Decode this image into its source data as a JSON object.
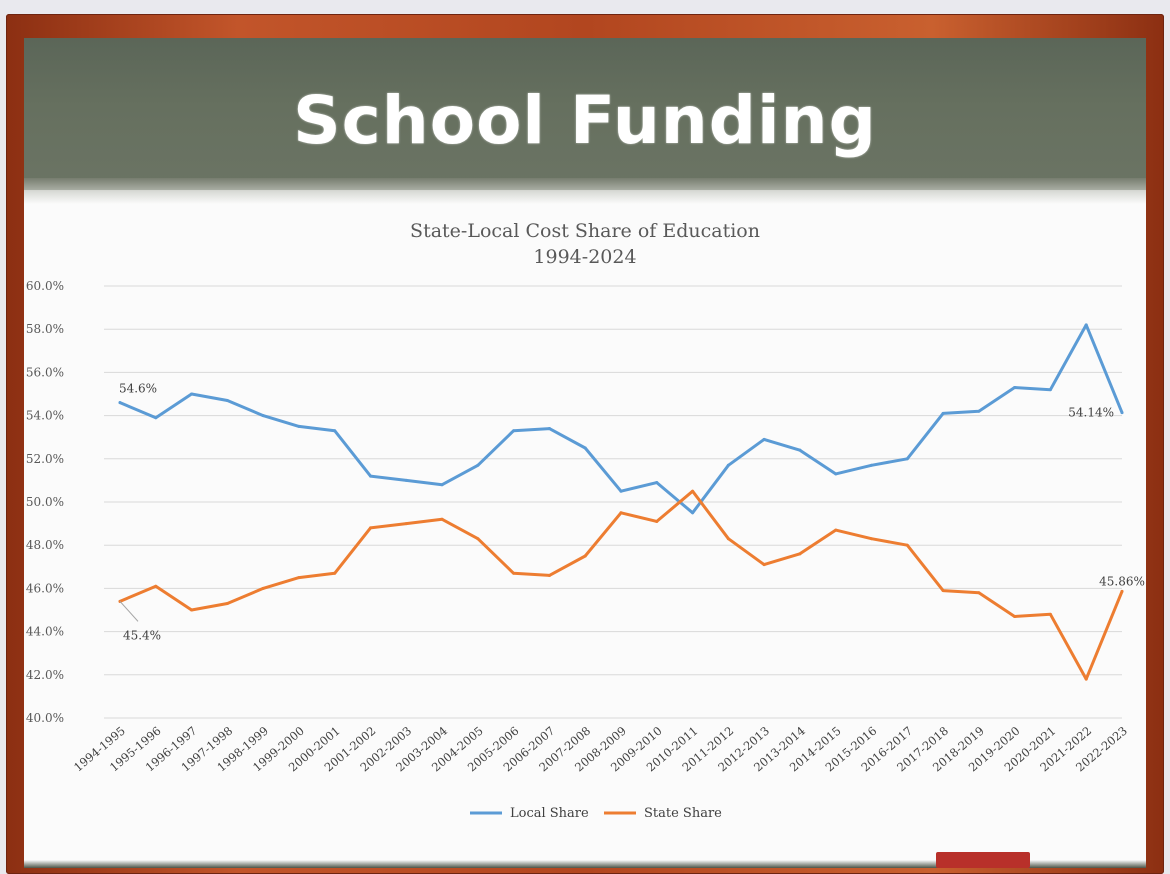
{
  "page": {
    "headline": "School Funding"
  },
  "chart_data": {
    "type": "line",
    "title": "State-Local Cost Share of Education",
    "subtitle": "1994-2024",
    "categories": [
      "1994-1995",
      "1995-1996",
      "1996-1997",
      "1997-1998",
      "1998-1999",
      "1999-2000",
      "2000-2001",
      "2001-2002",
      "2002-2003",
      "2003-2004",
      "2004-2005",
      "2005-2006",
      "2006-2007",
      "2007-2008",
      "2008-2009",
      "2009-2010",
      "2010-2011",
      "2011-2012",
      "2012-2013",
      "2013-2014",
      "2014-2015",
      "2015-2016",
      "2016-2017",
      "2017-2018",
      "2018-2019",
      "2019-2020",
      "2020-2021",
      "2021-2022",
      "2022-2023"
    ],
    "ylim": [
      40,
      60
    ],
    "yticks": [
      "40.0%",
      "42.0%",
      "44.0%",
      "46.0%",
      "48.0%",
      "50.0%",
      "52.0%",
      "54.0%",
      "56.0%",
      "58.0%",
      "60.0%"
    ],
    "grid": true,
    "legend_position": "bottom",
    "series": [
      {
        "name": "Local Share",
        "color": "#5b9bd5",
        "values": [
          54.6,
          53.9,
          55.0,
          54.7,
          54.0,
          53.5,
          53.3,
          51.2,
          51.0,
          50.8,
          51.7,
          53.3,
          53.4,
          52.5,
          50.5,
          50.9,
          49.5,
          51.7,
          52.9,
          52.4,
          51.3,
          51.7,
          52.0,
          54.1,
          54.2,
          55.3,
          55.2,
          58.2,
          54.14
        ]
      },
      {
        "name": "State Share",
        "color": "#ed7d31",
        "values": [
          45.4,
          46.1,
          45.0,
          45.3,
          46.0,
          46.5,
          46.7,
          48.8,
          49.0,
          49.2,
          48.3,
          46.7,
          46.6,
          47.5,
          49.5,
          49.1,
          50.5,
          48.3,
          47.1,
          47.6,
          48.7,
          48.3,
          48.0,
          45.9,
          45.8,
          44.7,
          44.8,
          41.8,
          45.86
        ]
      }
    ],
    "annotations": [
      {
        "series": 0,
        "index": 0,
        "text": "54.6%"
      },
      {
        "series": 0,
        "index": 28,
        "text": "54.14%"
      },
      {
        "series": 1,
        "index": 0,
        "text": "45.4%"
      },
      {
        "series": 1,
        "index": 28,
        "text": "45.86%"
      }
    ]
  }
}
